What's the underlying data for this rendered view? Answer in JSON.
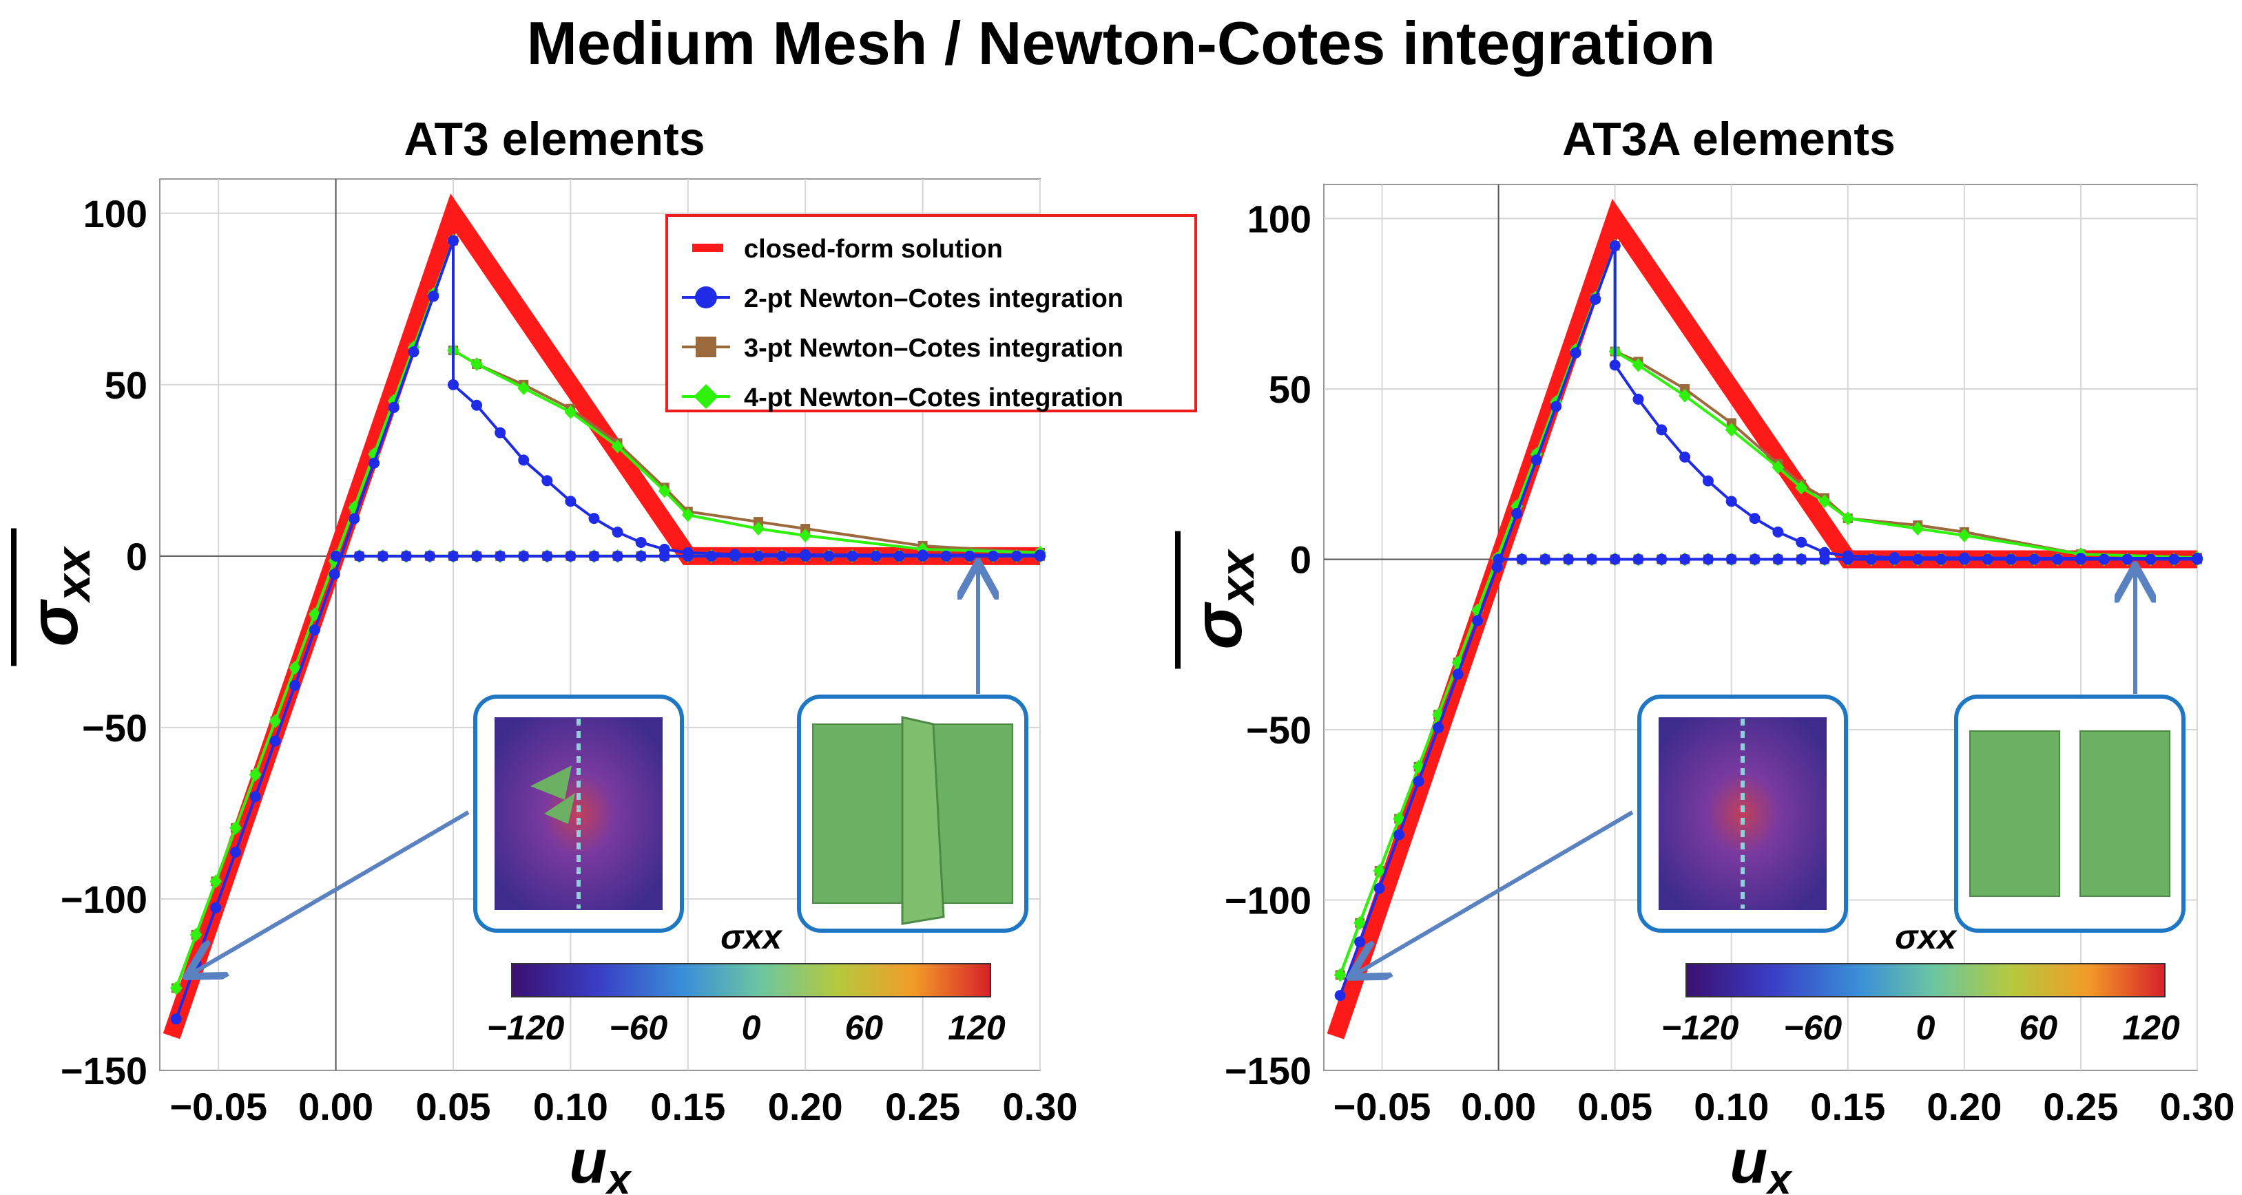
{
  "title": "Medium Mesh / Newton-Cotes integration",
  "colors": {
    "closed_form": "#ff1a1a",
    "pt2": "#1f2be6",
    "pt3": "#9b6a3c",
    "pt4": "#2ef20b",
    "inset_border": "#1f77c4",
    "arrow": "#5a82c0",
    "mesh_green": "#6cb063"
  },
  "legend": {
    "closed_form": "closed-form solution",
    "pt2": "2-pt Newton–Cotes integration",
    "pt3": "3-pt Newton–Cotes integration",
    "pt4": "4-pt Newton–Cotes integration"
  },
  "colorbar": {
    "label": "σxx",
    "ticks": [
      "−120",
      "−60",
      "0",
      "60",
      "120"
    ]
  },
  "chart_data": [
    {
      "type": "line",
      "title": "AT3 elements",
      "xlabel": "ux",
      "ylabel": "σxx (overline)",
      "xlim": [
        -0.075,
        0.3
      ],
      "ylim": [
        -150,
        110
      ],
      "xticks": [
        "−0.05",
        "0.00",
        "0.05",
        "0.10",
        "0.15",
        "0.20",
        "0.25",
        "0.30"
      ],
      "yticks": [
        "100",
        "50",
        "0",
        "−50",
        "−100",
        "−150"
      ],
      "series": [
        {
          "name": "closed-form solution",
          "x": [
            -0.07,
            0.05,
            0.15,
            0.3
          ],
          "y": [
            -140,
            100,
            0,
            0
          ]
        },
        {
          "name": "2-pt Newton–Cotes integration",
          "loading_x": [
            -0.068,
            0.05
          ],
          "loading_y": [
            -135,
            92
          ],
          "softening_x": [
            0.05,
            0.06,
            0.07,
            0.08,
            0.09,
            0.1,
            0.11,
            0.12,
            0.13,
            0.14,
            0.15,
            0.17,
            0.2,
            0.25,
            0.3
          ],
          "softening_y": [
            50,
            44,
            36,
            28,
            22,
            16,
            11,
            7,
            4,
            2,
            1,
            0.5,
            0.4,
            0.3,
            0.3
          ],
          "unloading_x": [
            0.0,
            0.3
          ],
          "unloading_y": [
            0,
            0
          ]
        },
        {
          "name": "3-pt Newton–Cotes integration",
          "loading_x": [
            -0.068,
            0.05
          ],
          "loading_y": [
            -126,
            92
          ],
          "softening_x": [
            0.05,
            0.06,
            0.08,
            0.1,
            0.12,
            0.14,
            0.15,
            0.18,
            0.2,
            0.25,
            0.3
          ],
          "softening_y": [
            60,
            56,
            50,
            43,
            33,
            20,
            13,
            10,
            8,
            3,
            1
          ],
          "unloading_x": [
            0.0,
            0.3
          ],
          "unloading_y": [
            0,
            0
          ]
        },
        {
          "name": "4-pt Newton–Cotes integration",
          "loading_x": [
            -0.068,
            0.05
          ],
          "loading_y": [
            -126,
            92
          ],
          "softening_x": [
            0.05,
            0.06,
            0.08,
            0.1,
            0.12,
            0.14,
            0.15,
            0.18,
            0.2,
            0.25,
            0.3
          ],
          "softening_y": [
            60,
            56,
            49,
            42,
            32,
            19,
            12,
            8,
            6,
            2,
            1
          ],
          "unloading_x": [
            0.0,
            0.3
          ],
          "unloading_y": [
            0,
            0
          ]
        }
      ]
    },
    {
      "type": "line",
      "title": "AT3A elements",
      "xlabel": "ux",
      "ylabel": "σxx (overline)",
      "xlim": [
        -0.075,
        0.3
      ],
      "ylim": [
        -150,
        110
      ],
      "xticks": [
        "−0.05",
        "0.00",
        "0.05",
        "0.10",
        "0.15",
        "0.20",
        "0.25",
        "0.30"
      ],
      "yticks": [
        "100",
        "50",
        "0",
        "−50",
        "−100",
        "−150"
      ],
      "series": [
        {
          "name": "closed-form solution",
          "x": [
            -0.07,
            0.05,
            0.15,
            0.3
          ],
          "y": [
            -140,
            100,
            0,
            0
          ]
        },
        {
          "name": "2-pt Newton–Cotes integration",
          "loading_x": [
            -0.068,
            0.05
          ],
          "loading_y": [
            -128,
            92
          ],
          "softening_x": [
            0.05,
            0.06,
            0.07,
            0.08,
            0.09,
            0.1,
            0.11,
            0.12,
            0.13,
            0.14,
            0.15,
            0.17,
            0.2,
            0.25,
            0.3
          ],
          "softening_y": [
            57,
            47,
            38,
            30,
            23,
            17,
            12,
            8,
            5,
            2,
            1,
            0.5,
            0.4,
            0.3,
            0.3
          ],
          "unloading_x": [
            0.0,
            0.3
          ],
          "unloading_y": [
            0,
            0
          ]
        },
        {
          "name": "3-pt Newton–Cotes integration",
          "loading_x": [
            -0.068,
            0.05
          ],
          "loading_y": [
            -122,
            92
          ],
          "softening_x": [
            0.05,
            0.06,
            0.08,
            0.1,
            0.12,
            0.13,
            0.14,
            0.15,
            0.18,
            0.2,
            0.25,
            0.3
          ],
          "softening_y": [
            61,
            58,
            50,
            40,
            28,
            22,
            18,
            12,
            10,
            8,
            1.5,
            0.5
          ],
          "unloading_x": [
            0.0,
            0.3
          ],
          "unloading_y": [
            0,
            0
          ]
        },
        {
          "name": "4-pt Newton–Cotes integration",
          "loading_x": [
            -0.068,
            0.05
          ],
          "loading_y": [
            -122,
            92
          ],
          "softening_x": [
            0.05,
            0.06,
            0.08,
            0.1,
            0.12,
            0.13,
            0.14,
            0.15,
            0.18,
            0.2,
            0.25,
            0.3
          ],
          "softening_y": [
            61,
            57,
            48,
            38,
            27,
            21,
            17,
            12,
            9,
            7,
            1.5,
            0.5
          ],
          "unloading_x": [
            0.0,
            0.3
          ],
          "unloading_y": [
            0,
            0
          ]
        }
      ]
    }
  ]
}
